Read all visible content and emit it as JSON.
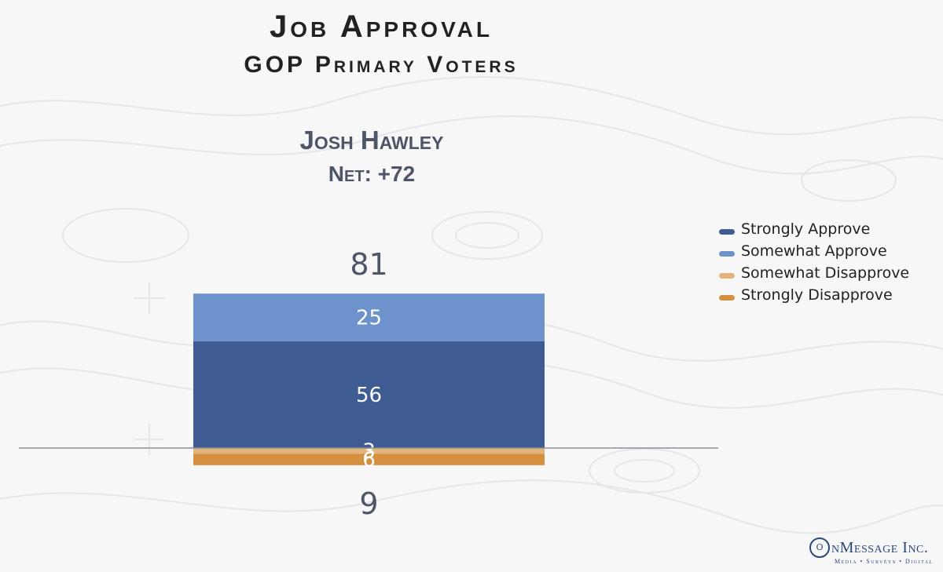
{
  "header": {
    "title": "Job Approval",
    "subtitle": "GOP Primary Voters"
  },
  "subject": {
    "name": "Josh Hawley",
    "net": "Net: +72"
  },
  "legend": {
    "items": [
      {
        "label": "Strongly Approve",
        "color": "#3e5c91"
      },
      {
        "label": "Somewhat Approve",
        "color": "#6e92cc"
      },
      {
        "label": "Somewhat Disapprove",
        "color": "#e2b37a"
      },
      {
        "label": "Strongly Disapprove",
        "color": "#d48f3f"
      }
    ]
  },
  "chart_data": {
    "type": "bar",
    "categories": [
      "Josh Hawley"
    ],
    "series": [
      {
        "name": "Strongly Approve",
        "values": [
          56
        ],
        "color": "#3e5c91",
        "direction": "positive"
      },
      {
        "name": "Somewhat Approve",
        "values": [
          25
        ],
        "color": "#6e92cc",
        "direction": "positive"
      },
      {
        "name": "Somewhat Disapprove",
        "values": [
          3
        ],
        "color": "#e2b37a",
        "direction": "negative"
      },
      {
        "name": "Strongly Disapprove",
        "values": [
          6
        ],
        "color": "#d48f3f",
        "direction": "negative"
      }
    ],
    "totals": {
      "approve": 81,
      "disapprove": 9
    },
    "stacked": true,
    "diverging": true,
    "title": "Job Approval",
    "subtitle": "GOP Primary Voters",
    "grid": false,
    "legend_position": "right"
  },
  "brand": {
    "mark": "O",
    "name": "nMessage Inc.",
    "tagline": "Media • Surveys • Digital"
  }
}
